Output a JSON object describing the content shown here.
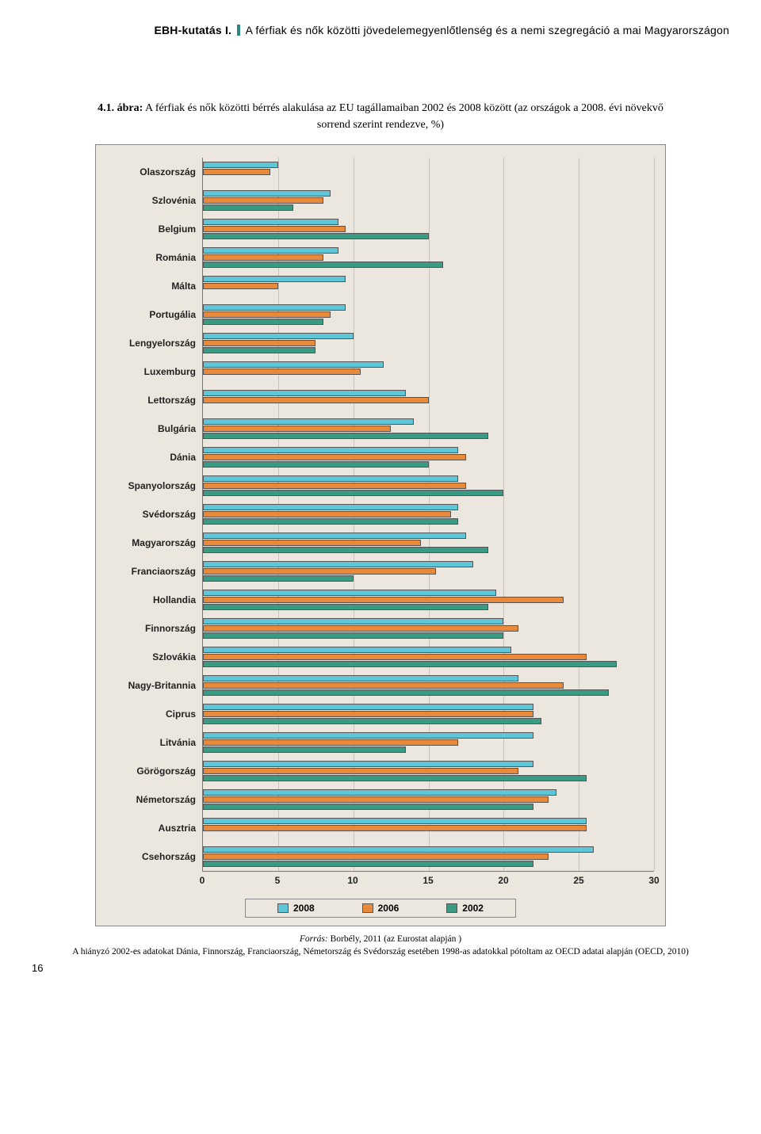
{
  "header": {
    "prefix_bold": "EBH-kutatás I.",
    "rest": "A férfiak és nők közötti jövedelemegyenlőtlenség és a nemi szegregáció a mai Magyarországon"
  },
  "caption": {
    "num_bold": "4.1. ábra:",
    "text": " A férfiak és nők közötti bérrés alakulása az EU tagállamaiban 2002 és 2008 között (az országok a 2008. évi növekvő sorrend szerint rendezve, %)"
  },
  "chart": {
    "type": "grouped horizontal bar",
    "series_labels": [
      "2008",
      "2006",
      "2002"
    ],
    "series_colors": [
      "#5ec6d6",
      "#e88a3a",
      "#3a9a84"
    ],
    "bar_border": "#555555",
    "background": "#ebe6de",
    "grid_color": "#c9c4bb",
    "xmin": 0,
    "xmax": 30,
    "xtick_step": 5,
    "xticks": [
      0,
      5,
      10,
      15,
      20,
      25,
      30
    ],
    "label_fontsize": 12,
    "label_weight": "bold",
    "categories": [
      {
        "name": "Olaszország",
        "v2008": 5,
        "v2006": 4.5,
        "v2002": null
      },
      {
        "name": "Szlovénia",
        "v2008": 8.5,
        "v2006": 8,
        "v2002": 6
      },
      {
        "name": "Belgium",
        "v2008": 9,
        "v2006": 9.5,
        "v2002": 15
      },
      {
        "name": "Románia",
        "v2008": 9,
        "v2006": 8,
        "v2002": 16
      },
      {
        "name": "Málta",
        "v2008": 9.5,
        "v2006": 5,
        "v2002": null
      },
      {
        "name": "Portugália",
        "v2008": 9.5,
        "v2006": 8.5,
        "v2002": 8
      },
      {
        "name": "Lengyelország",
        "v2008": 10,
        "v2006": 7.5,
        "v2002": 7.5
      },
      {
        "name": "Luxemburg",
        "v2008": 12,
        "v2006": 10.5,
        "v2002": null
      },
      {
        "name": "Lettország",
        "v2008": 13.5,
        "v2006": 15,
        "v2002": null
      },
      {
        "name": "Bulgária",
        "v2008": 14,
        "v2006": 12.5,
        "v2002": 19
      },
      {
        "name": "Dánia",
        "v2008": 17,
        "v2006": 17.5,
        "v2002": 15
      },
      {
        "name": "Spanyolország",
        "v2008": 17,
        "v2006": 17.5,
        "v2002": 20
      },
      {
        "name": "Svédország",
        "v2008": 17,
        "v2006": 16.5,
        "v2002": 17
      },
      {
        "name": "Magyarország",
        "v2008": 17.5,
        "v2006": 14.5,
        "v2002": 19
      },
      {
        "name": "Franciaország",
        "v2008": 18,
        "v2006": 15.5,
        "v2002": 10
      },
      {
        "name": "Hollandia",
        "v2008": 19.5,
        "v2006": 24,
        "v2002": 19
      },
      {
        "name": "Finnország",
        "v2008": 20,
        "v2006": 21,
        "v2002": 20
      },
      {
        "name": "Szlovákia",
        "v2008": 20.5,
        "v2006": 25.5,
        "v2002": 27.5
      },
      {
        "name": "Nagy-Britannia",
        "v2008": 21,
        "v2006": 24,
        "v2002": 27
      },
      {
        "name": "Ciprus",
        "v2008": 22,
        "v2006": 22,
        "v2002": 22.5
      },
      {
        "name": "Litvánia",
        "v2008": 22,
        "v2006": 17,
        "v2002": 13.5
      },
      {
        "name": "Görögország",
        "v2008": 22,
        "v2006": 21,
        "v2002": 25.5
      },
      {
        "name": "Németország",
        "v2008": 23.5,
        "v2006": 23,
        "v2002": 22
      },
      {
        "name": "Ausztria",
        "v2008": 25.5,
        "v2006": 25.5,
        "v2002": null
      },
      {
        "name": "Csehország",
        "v2008": 26,
        "v2006": 23,
        "v2002": 22
      }
    ]
  },
  "source": {
    "label_italic": "Forrás:",
    "text": " Borbély, 2011 (az Eurostat alapján )"
  },
  "note": "A hiányzó 2002-es adatokat Dánia, Finnország, Franciaország, Németország és Svédország esetében 1998-as adatokkal pótoltam az OECD adatai alapján (OECD, 2010)",
  "pagenum": "16"
}
